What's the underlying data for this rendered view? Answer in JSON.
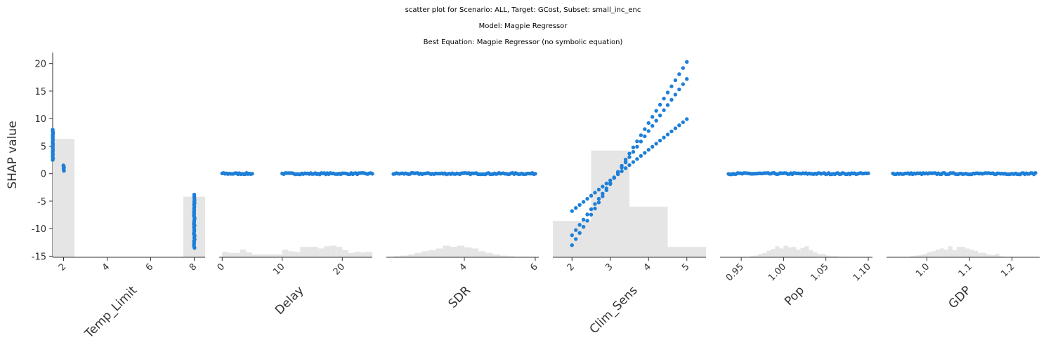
{
  "title_lines": [
    "scatter plot for Scenario: ALL, Target: GCost, Subset: small_inc_enc",
    "Model: Magpie Regressor",
    "Best Equation: Magpie Regressor (no symbolic equation)"
  ],
  "colors": {
    "points": "#1e7fd8",
    "histogram": "#e5e5e5",
    "axis": "#333333"
  },
  "chart_data": {
    "type": "scatter",
    "ylabel": "SHAP value",
    "ylim": [
      -15.2,
      22
    ],
    "yticks": [
      -15,
      -10,
      -5,
      0,
      5,
      10,
      15,
      20
    ],
    "panels": [
      {
        "xlabel": "Temp_Limit",
        "xlim": [
          1.5,
          8.5
        ],
        "xticks": [
          2,
          4,
          6,
          8
        ],
        "xtick_labels": [
          "2",
          "4",
          "6",
          "8"
        ],
        "hist": {
          "edges": [
            1.5,
            2.5,
            7.5,
            8.5
          ],
          "values": [
            6.3,
            null,
            -4.2
          ]
        },
        "points_summary": [
          {
            "x": 1.5,
            "y_min": 2.5,
            "y_max": 8
          },
          {
            "x": 2,
            "y_min": 0.5,
            "y_max": 1.5
          },
          {
            "x": 8,
            "y_min": -13.5,
            "y_max": -3.8
          }
        ]
      },
      {
        "xlabel": "Delay",
        "xlim": [
          -0.5,
          25
        ],
        "xticks": [
          0,
          10,
          20
        ],
        "xtick_labels": [
          "0",
          "10",
          "20"
        ],
        "hist": {
          "edges": [
            0,
            1,
            2,
            3,
            4,
            5,
            10,
            11,
            12,
            13,
            14,
            15,
            16,
            17,
            18,
            19,
            20,
            21,
            22,
            23,
            24,
            25
          ],
          "values": [
            -14.2,
            -14.4,
            -14.4,
            -13.8,
            -14.3,
            -14.7,
            -13.8,
            -14.1,
            -14.2,
            -13.3,
            -13.3,
            -13.3,
            -13.6,
            -13.2,
            -13.1,
            -13.3,
            -13.9,
            -14.4,
            -14.2,
            -14.3,
            -14.2
          ]
        },
        "points_summary": [
          {
            "x_range": [
              0,
              5
            ],
            "y": 0
          },
          {
            "x_range": [
              10,
              25
            ],
            "y": 0
          }
        ]
      },
      {
        "xlabel": "SDR",
        "xlim": [
          1.8,
          6.1
        ],
        "xticks": [
          4,
          6
        ],
        "xtick_labels": [
          "4",
          "6"
        ],
        "hist": {
          "edges": [
            2.0,
            2.2,
            2.4,
            2.6,
            2.8,
            3.0,
            3.2,
            3.4,
            3.6,
            3.8,
            4.0,
            4.2,
            4.4,
            4.6,
            4.8,
            5.0,
            5.2,
            5.4,
            5.6,
            5.8
          ],
          "values": [
            -15.0,
            -14.9,
            -14.7,
            -14.4,
            -14.1,
            -13.9,
            -13.6,
            -13.1,
            -13.3,
            -13.1,
            -13.4,
            -13.6,
            -14.1,
            -14.4,
            -14.7,
            -14.9,
            -15.0,
            -15.1,
            -15.1
          ]
        },
        "points_summary": [
          {
            "x_range": [
              2.0,
              6.0
            ],
            "y": 0
          }
        ]
      },
      {
        "xlabel": "Clim_Sens",
        "xlim": [
          1.5,
          5.5
        ],
        "xticks": [
          2,
          3,
          4,
          5
        ],
        "xtick_labels": [
          "2",
          "3",
          "4",
          "5"
        ],
        "hist": {
          "edges": [
            1.5,
            2.5,
            3.5,
            4.5,
            5.5
          ],
          "values": [
            -8.6,
            4.2,
            -6.0,
            -13.3
          ]
        },
        "series": [
          {
            "x_range": [
              2,
              5
            ],
            "y_at_start": -6.8,
            "y_at_end": 9.9
          },
          {
            "x_range": [
              2,
              5
            ],
            "y_at_start": -11.2,
            "y_at_end": 17.2
          },
          {
            "x_range": [
              2,
              5
            ],
            "y_at_start": -13.0,
            "y_at_end": 20.3
          }
        ]
      },
      {
        "xlabel": "Pop",
        "xlim": [
          0.925,
          1.105
        ],
        "xticks": [
          0.95,
          1.0,
          1.05,
          1.1
        ],
        "xtick_labels": [
          "0.95",
          "1.00",
          "1.05",
          "1.10"
        ],
        "hist": {
          "edges": [
            0.96,
            0.965,
            0.97,
            0.975,
            0.98,
            0.985,
            0.99,
            0.995,
            1.0,
            1.005,
            1.01,
            1.015,
            1.02,
            1.025,
            1.03,
            1.035,
            1.04,
            1.045,
            1.05,
            1.055,
            1.06,
            1.065,
            1.07
          ],
          "values": [
            -15.0,
            -14.9,
            -14.6,
            -14.4,
            -14.0,
            -13.7,
            -13.2,
            -13.6,
            -13.1,
            -13.4,
            -13.3,
            -13.8,
            -13.5,
            -13.2,
            -13.9,
            -14.3,
            -14.6,
            -14.6,
            -14.9,
            -15.0,
            -15.0,
            -15.1
          ]
        },
        "points_summary": [
          {
            "x_range": [
              0.935,
              1.1
            ],
            "y": 0
          }
        ]
      },
      {
        "xlabel": "GDP",
        "xlim": [
          0.905,
          1.265
        ],
        "xticks": [
          1.0,
          1.1,
          1.2
        ],
        "xtick_labels": [
          "1.0",
          "1.1",
          "1.2"
        ],
        "hist": {
          "edges": [
            0.96,
            0.97,
            0.98,
            0.99,
            1.0,
            1.01,
            1.02,
            1.03,
            1.04,
            1.05,
            1.06,
            1.07,
            1.08,
            1.09,
            1.1,
            1.11,
            1.12,
            1.13,
            1.14,
            1.15,
            1.16,
            1.17,
            1.18,
            1.19,
            1.2
          ],
          "values": [
            -15.0,
            -14.9,
            -14.8,
            -14.6,
            -14.3,
            -14.1,
            -13.8,
            -13.6,
            -13.8,
            -13.2,
            -13.9,
            -13.3,
            -13.3,
            -13.6,
            -13.8,
            -14.0,
            -14.4,
            -14.4,
            -14.7,
            -14.8,
            -14.6,
            -15.0,
            -15.1,
            -15.1
          ]
        },
        "points_summary": [
          {
            "x_range": [
              0.92,
              1.255
            ],
            "y": 0
          }
        ]
      }
    ]
  }
}
